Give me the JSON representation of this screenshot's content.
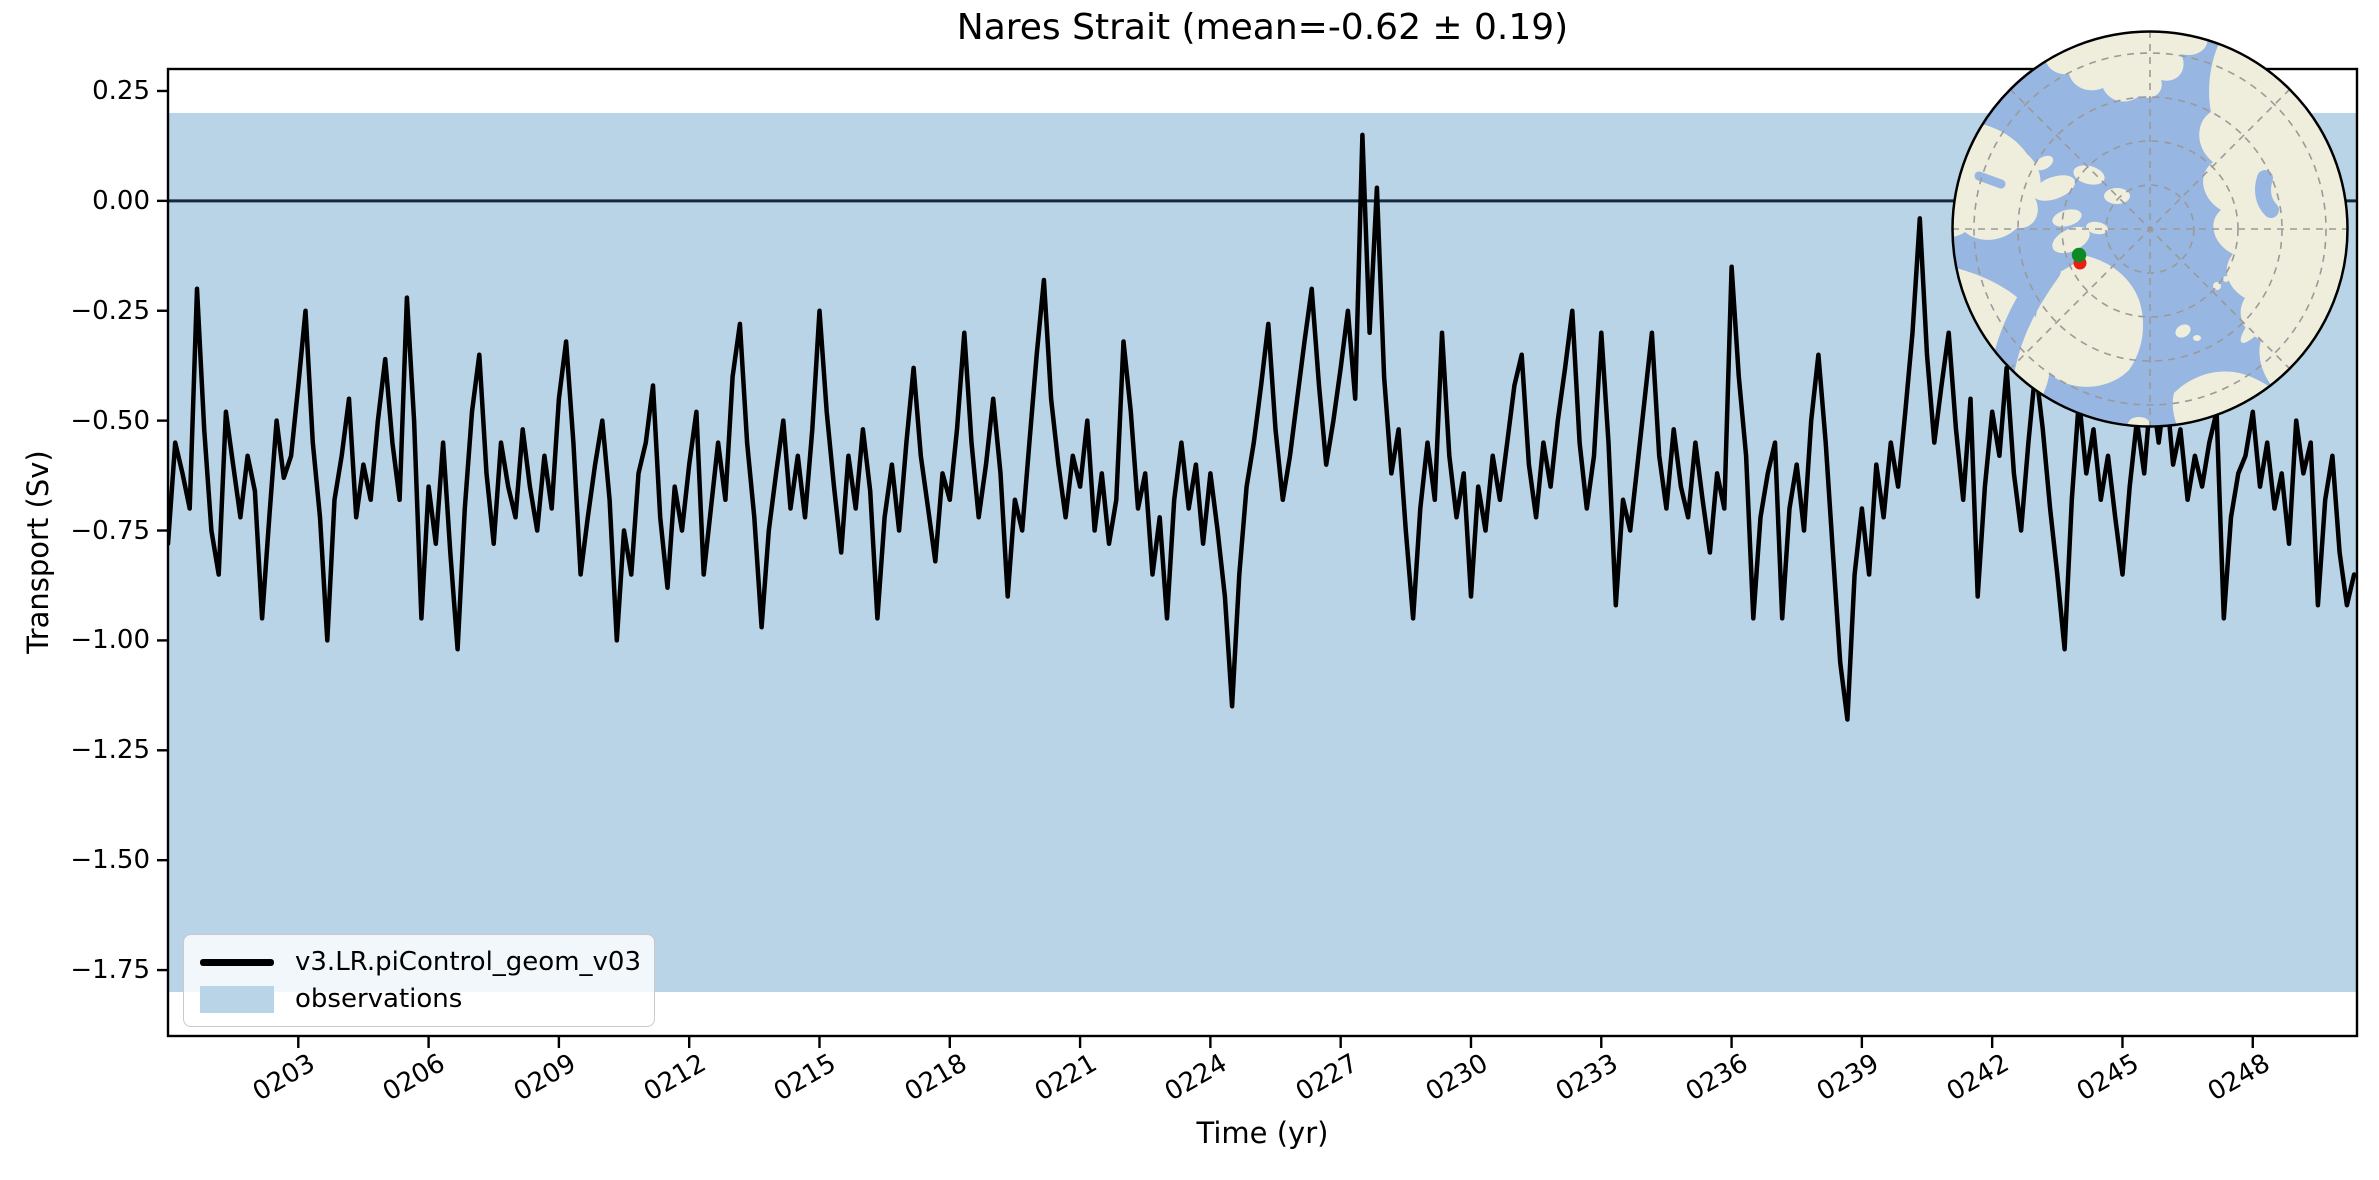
{
  "figure": {
    "background": "#ffffff"
  },
  "chart_data": {
    "type": "line",
    "title": "Nares Strait (mean=-0.62 ± 0.19)",
    "xlabel": "Time (yr)",
    "ylabel": "Transport (Sv)",
    "xlim": [
      200.0,
      250.4
    ],
    "ylim": [
      -1.9,
      0.3
    ],
    "grid": false,
    "legend_position": "lower left",
    "x_ticks": {
      "values": [
        203,
        206,
        209,
        212,
        215,
        218,
        221,
        224,
        227,
        230,
        233,
        236,
        239,
        242,
        245,
        248
      ],
      "labels": [
        "0203",
        "0206",
        "0209",
        "0212",
        "0215",
        "0218",
        "0221",
        "0224",
        "0227",
        "0230",
        "0233",
        "0236",
        "0239",
        "0242",
        "0245",
        "0248"
      ]
    },
    "y_ticks": {
      "values": [
        0.25,
        0.0,
        -0.25,
        -0.5,
        -0.75,
        -1.0,
        -1.25,
        -1.5,
        -1.75
      ],
      "labels": [
        "0.25",
        "0.00",
        "−0.25",
        "−0.50",
        "−0.75",
        "−1.00",
        "−1.25",
        "−1.50",
        "−1.75"
      ]
    },
    "zero_line": {
      "y": 0.0,
      "color": "#14293d",
      "width": 3
    },
    "observations_band": {
      "ymin": -1.8,
      "ymax": 0.2,
      "color": "#b9d3e7",
      "label": "observations"
    },
    "series": [
      {
        "name": "v3.LR.piControl_geom_v03",
        "color": "#000000",
        "line_width": 4.5,
        "x_start": 200.0,
        "x_step": 0.166667,
        "values": [
          -0.78,
          -0.55,
          -0.62,
          -0.7,
          -0.2,
          -0.52,
          -0.75,
          -0.85,
          -0.48,
          -0.6,
          -0.72,
          -0.58,
          -0.66,
          -0.95,
          -0.72,
          -0.5,
          -0.63,
          -0.58,
          -0.42,
          -0.25,
          -0.55,
          -0.72,
          -1.0,
          -0.68,
          -0.58,
          -0.45,
          -0.72,
          -0.6,
          -0.68,
          -0.5,
          -0.36,
          -0.55,
          -0.68,
          -0.22,
          -0.5,
          -0.95,
          -0.65,
          -0.78,
          -0.55,
          -0.8,
          -1.02,
          -0.7,
          -0.48,
          -0.35,
          -0.62,
          -0.78,
          -0.55,
          -0.65,
          -0.72,
          -0.52,
          -0.65,
          -0.75,
          -0.58,
          -0.7,
          -0.45,
          -0.32,
          -0.55,
          -0.85,
          -0.72,
          -0.6,
          -0.5,
          -0.68,
          -1.0,
          -0.75,
          -0.85,
          -0.62,
          -0.55,
          -0.42,
          -0.72,
          -0.88,
          -0.65,
          -0.75,
          -0.6,
          -0.48,
          -0.85,
          -0.7,
          -0.55,
          -0.68,
          -0.4,
          -0.28,
          -0.55,
          -0.72,
          -0.97,
          -0.75,
          -0.62,
          -0.5,
          -0.7,
          -0.58,
          -0.72,
          -0.52,
          -0.25,
          -0.48,
          -0.65,
          -0.8,
          -0.58,
          -0.7,
          -0.52,
          -0.66,
          -0.95,
          -0.72,
          -0.6,
          -0.75,
          -0.55,
          -0.38,
          -0.58,
          -0.7,
          -0.82,
          -0.62,
          -0.68,
          -0.52,
          -0.3,
          -0.55,
          -0.72,
          -0.6,
          -0.45,
          -0.62,
          -0.9,
          -0.68,
          -0.75,
          -0.55,
          -0.35,
          -0.18,
          -0.45,
          -0.6,
          -0.72,
          -0.58,
          -0.65,
          -0.5,
          -0.75,
          -0.62,
          -0.78,
          -0.68,
          -0.32,
          -0.48,
          -0.7,
          -0.62,
          -0.85,
          -0.72,
          -0.95,
          -0.68,
          -0.55,
          -0.7,
          -0.6,
          -0.78,
          -0.62,
          -0.75,
          -0.9,
          -1.15,
          -0.85,
          -0.65,
          -0.55,
          -0.42,
          -0.28,
          -0.52,
          -0.68,
          -0.58,
          -0.45,
          -0.32,
          -0.2,
          -0.42,
          -0.6,
          -0.5,
          -0.38,
          -0.25,
          -0.45,
          0.15,
          -0.3,
          0.03,
          -0.4,
          -0.62,
          -0.52,
          -0.75,
          -0.95,
          -0.7,
          -0.55,
          -0.68,
          -0.3,
          -0.58,
          -0.72,
          -0.62,
          -0.9,
          -0.65,
          -0.75,
          -0.58,
          -0.68,
          -0.55,
          -0.42,
          -0.35,
          -0.6,
          -0.72,
          -0.55,
          -0.65,
          -0.5,
          -0.38,
          -0.25,
          -0.55,
          -0.7,
          -0.58,
          -0.3,
          -0.55,
          -0.92,
          -0.68,
          -0.75,
          -0.6,
          -0.45,
          -0.3,
          -0.58,
          -0.7,
          -0.52,
          -0.65,
          -0.72,
          -0.55,
          -0.68,
          -0.8,
          -0.62,
          -0.7,
          -0.15,
          -0.4,
          -0.58,
          -0.95,
          -0.72,
          -0.62,
          -0.55,
          -0.95,
          -0.7,
          -0.6,
          -0.75,
          -0.5,
          -0.35,
          -0.55,
          -0.8,
          -1.05,
          -1.18,
          -0.85,
          -0.7,
          -0.85,
          -0.6,
          -0.72,
          -0.55,
          -0.65,
          -0.48,
          -0.3,
          -0.04,
          -0.35,
          -0.55,
          -0.42,
          -0.3,
          -0.52,
          -0.68,
          -0.45,
          -0.9,
          -0.65,
          -0.48,
          -0.58,
          -0.38,
          -0.62,
          -0.75,
          -0.55,
          -0.38,
          -0.52,
          -0.7,
          -0.85,
          -1.02,
          -0.68,
          -0.45,
          -0.62,
          -0.52,
          -0.68,
          -0.58,
          -0.72,
          -0.85,
          -0.65,
          -0.5,
          -0.62,
          -0.42,
          -0.55,
          -0.42,
          -0.6,
          -0.52,
          -0.68,
          -0.58,
          -0.65,
          -0.55,
          -0.48,
          -0.95,
          -0.72,
          -0.62,
          -0.58,
          -0.48,
          -0.65,
          -0.55,
          -0.7,
          -0.62,
          -0.78,
          -0.5,
          -0.62,
          -0.55,
          -0.92,
          -0.68,
          -0.58,
          -0.8,
          -0.92,
          -0.85
        ]
      }
    ]
  },
  "legend": {
    "items": [
      {
        "label": "v3.LR.piControl_geom_v03",
        "swatch": "line",
        "color": "#000000"
      },
      {
        "label": "observations",
        "swatch": "patch",
        "color": "#b9d3e7"
      }
    ]
  },
  "inset_map": {
    "description": "North-polar stereographic map with Nares Strait markers",
    "ocean_color": "#97b6e1",
    "land_color": "#efeedc",
    "graticule_color": "#9a9a9a",
    "border_color": "#000000",
    "marker_green": "#0e8a24",
    "marker_red": "#ea1f14"
  }
}
